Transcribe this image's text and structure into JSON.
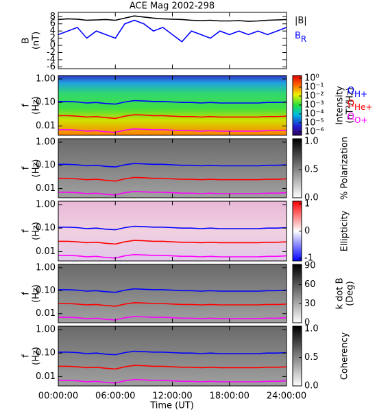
{
  "chart_data": [
    {
      "type": "line",
      "title": "ACE Mag 2002-298",
      "ylabel": [
        "B",
        "(nT)"
      ],
      "ylim": [
        -6.5,
        9.2
      ],
      "yticks": [
        -6,
        -4,
        -2,
        0,
        2,
        4,
        6,
        8
      ],
      "x": [
        0,
        1,
        2,
        3,
        4,
        5,
        6,
        7,
        8,
        9,
        10,
        11,
        12,
        13,
        14,
        15,
        16,
        17,
        18,
        19,
        20,
        21,
        22,
        23,
        24
      ],
      "legend": true,
      "series": [
        {
          "name": "|B|",
          "color": "#000000",
          "values": [
            7.2,
            7.4,
            7.3,
            7.0,
            7.1,
            7.2,
            7.0,
            7.6,
            8.2,
            7.9,
            7.6,
            7.4,
            7.3,
            7.2,
            7.0,
            6.9,
            7.0,
            6.8,
            6.8,
            6.9,
            6.7,
            6.8,
            7.0,
            7.1,
            7.2
          ]
        },
        {
          "name": "B",
          "subscript": "R",
          "color": "#0000ff",
          "values": [
            3,
            4,
            5,
            2,
            4,
            3,
            2,
            6,
            7,
            6,
            4,
            5,
            3,
            1,
            4,
            3,
            2,
            4,
            3,
            4,
            3,
            4,
            3,
            4,
            5
          ]
        }
      ]
    },
    {
      "type": "spectrogram",
      "ylabel": [
        "f",
        "(Hz)"
      ],
      "log": true,
      "ylim": [
        0.004,
        1.4
      ],
      "yticks": [
        {
          "value": 1,
          "label": "1.00"
        },
        {
          "value": 0.1,
          "label": "0.10"
        },
        {
          "value": 0.01,
          "label": "0.01"
        }
      ],
      "colormap": "rainbow",
      "colorbar": {
        "label": [
          "Intensity",
          "(nT²/Hz)"
        ],
        "log": true,
        "lim": [
          4e-07,
          2
        ],
        "ticks": [
          {
            "value": 1,
            "label": "10⁰"
          },
          {
            "value": 0.1,
            "label": "10⁻¹"
          },
          {
            "value": 0.01,
            "label": "10⁻²"
          },
          {
            "value": 0.001,
            "label": "10⁻³"
          },
          {
            "value": 0.0001,
            "label": "10⁻⁴"
          },
          {
            "value": 1e-05,
            "label": "10⁻⁵"
          },
          {
            "value": 1e-06,
            "label": "10⁻⁶"
          }
        ]
      },
      "legend": true,
      "x": [
        0,
        1,
        2,
        3,
        4,
        5,
        6,
        7,
        8,
        9,
        10,
        11,
        12,
        13,
        14,
        15,
        16,
        17,
        18,
        19,
        20,
        21,
        22,
        23,
        24
      ],
      "series": [
        {
          "name": "Ω",
          "subscript": "H+",
          "color": "#0000ff",
          "values": [
            0.11,
            0.11,
            0.105,
            0.095,
            0.1,
            0.09,
            0.085,
            0.105,
            0.12,
            0.115,
            0.11,
            0.11,
            0.105,
            0.1,
            0.1,
            0.095,
            0.1,
            0.095,
            0.095,
            0.095,
            0.095,
            0.095,
            0.1,
            0.1,
            0.105
          ]
        },
        {
          "name": "Ω",
          "subscript": "He+",
          "color": "#ff0000",
          "values": [
            0.0275,
            0.0275,
            0.026,
            0.024,
            0.025,
            0.0225,
            0.021,
            0.026,
            0.03,
            0.029,
            0.0275,
            0.0275,
            0.026,
            0.025,
            0.025,
            0.024,
            0.025,
            0.024,
            0.024,
            0.024,
            0.024,
            0.024,
            0.025,
            0.025,
            0.026
          ]
        },
        {
          "name": "Ω",
          "subscript": "O+",
          "color": "#ff00ff",
          "values": [
            0.0069,
            0.0069,
            0.0066,
            0.006,
            0.0063,
            0.0056,
            0.0053,
            0.0066,
            0.0075,
            0.0072,
            0.0069,
            0.0069,
            0.0066,
            0.0063,
            0.0063,
            0.006,
            0.0063,
            0.006,
            0.006,
            0.006,
            0.006,
            0.006,
            0.0063,
            0.0063,
            0.0066
          ]
        }
      ]
    },
    {
      "type": "spectrogram",
      "ylabel": [
        "f",
        "(Hz)"
      ],
      "log": true,
      "ylim": [
        0.004,
        1.4
      ],
      "yticks": [
        {
          "value": 1,
          "label": "1.00"
        },
        {
          "value": 0.1,
          "label": "0.10"
        },
        {
          "value": 0.01,
          "label": "0.01"
        }
      ],
      "colormap": "gray",
      "colorbar": {
        "label": [
          "% Polarization"
        ],
        "lim": [
          0,
          1.05
        ],
        "ticks": [
          {
            "value": 0,
            "label": "0.0"
          },
          {
            "value": 0.5,
            "label": "0.5"
          },
          {
            "value": 1,
            "label": "1.0"
          }
        ]
      },
      "x": [
        0,
        1,
        2,
        3,
        4,
        5,
        6,
        7,
        8,
        9,
        10,
        11,
        12,
        13,
        14,
        15,
        16,
        17,
        18,
        19,
        20,
        21,
        22,
        23,
        24
      ],
      "series": [
        {
          "color": "#0000ff",
          "values": [
            0.11,
            0.11,
            0.105,
            0.095,
            0.1,
            0.09,
            0.085,
            0.105,
            0.12,
            0.115,
            0.11,
            0.11,
            0.105,
            0.1,
            0.1,
            0.095,
            0.1,
            0.095,
            0.095,
            0.095,
            0.095,
            0.095,
            0.1,
            0.1,
            0.105
          ]
        },
        {
          "color": "#ff0000",
          "values": [
            0.0275,
            0.0275,
            0.026,
            0.024,
            0.025,
            0.0225,
            0.021,
            0.026,
            0.03,
            0.029,
            0.0275,
            0.0275,
            0.026,
            0.025,
            0.025,
            0.024,
            0.025,
            0.024,
            0.024,
            0.024,
            0.024,
            0.024,
            0.025,
            0.025,
            0.026
          ]
        },
        {
          "color": "#ff00ff",
          "values": [
            0.0069,
            0.0069,
            0.0066,
            0.006,
            0.0063,
            0.0056,
            0.0053,
            0.0066,
            0.0075,
            0.0072,
            0.0069,
            0.0069,
            0.0066,
            0.0063,
            0.0063,
            0.006,
            0.0063,
            0.006,
            0.006,
            0.006,
            0.006,
            0.006,
            0.0063,
            0.0063,
            0.0066
          ]
        }
      ]
    },
    {
      "type": "spectrogram",
      "ylabel": [
        "f",
        "(Hz)"
      ],
      "log": true,
      "ylim": [
        0.004,
        1.4
      ],
      "yticks": [
        {
          "value": 1,
          "label": "1.00"
        },
        {
          "value": 0.1,
          "label": "0.10"
        },
        {
          "value": 0.01,
          "label": "0.01"
        }
      ],
      "colormap": "bwr",
      "colorbar": {
        "label": [
          "Ellipticity"
        ],
        "lim": [
          -1.1,
          1.1
        ],
        "ticks": [
          -1,
          0,
          1
        ]
      },
      "x": [
        0,
        1,
        2,
        3,
        4,
        5,
        6,
        7,
        8,
        9,
        10,
        11,
        12,
        13,
        14,
        15,
        16,
        17,
        18,
        19,
        20,
        21,
        22,
        23,
        24
      ],
      "series": [
        {
          "color": "#0000ff",
          "values": [
            0.11,
            0.11,
            0.105,
            0.095,
            0.1,
            0.09,
            0.085,
            0.105,
            0.12,
            0.115,
            0.11,
            0.11,
            0.105,
            0.1,
            0.1,
            0.095,
            0.1,
            0.095,
            0.095,
            0.095,
            0.095,
            0.095,
            0.1,
            0.1,
            0.105
          ]
        },
        {
          "color": "#ff0000",
          "values": [
            0.0275,
            0.0275,
            0.026,
            0.024,
            0.025,
            0.0225,
            0.021,
            0.026,
            0.03,
            0.029,
            0.0275,
            0.0275,
            0.026,
            0.025,
            0.025,
            0.024,
            0.025,
            0.024,
            0.024,
            0.024,
            0.024,
            0.024,
            0.025,
            0.025,
            0.026
          ]
        },
        {
          "color": "#ff00ff",
          "values": [
            0.0069,
            0.0069,
            0.0066,
            0.006,
            0.0063,
            0.0056,
            0.0053,
            0.0066,
            0.0075,
            0.0072,
            0.0069,
            0.0069,
            0.0066,
            0.0063,
            0.0063,
            0.006,
            0.0063,
            0.006,
            0.006,
            0.006,
            0.006,
            0.006,
            0.0063,
            0.0063,
            0.0066
          ]
        }
      ]
    },
    {
      "type": "spectrogram",
      "ylabel": [
        "f",
        "(Hz)"
      ],
      "log": true,
      "ylim": [
        0.004,
        1.4
      ],
      "yticks": [
        {
          "value": 1,
          "label": "1.00"
        },
        {
          "value": 0.1,
          "label": "0.10"
        },
        {
          "value": 0.01,
          "label": "0.01"
        }
      ],
      "colormap": "gray",
      "colorbar": {
        "label": [
          "k dot B",
          "(Deg)"
        ],
        "lim": [
          0,
          92
        ],
        "ticks": [
          0,
          30,
          60,
          90
        ]
      },
      "x": [
        0,
        1,
        2,
        3,
        4,
        5,
        6,
        7,
        8,
        9,
        10,
        11,
        12,
        13,
        14,
        15,
        16,
        17,
        18,
        19,
        20,
        21,
        22,
        23,
        24
      ],
      "series": [
        {
          "color": "#0000ff",
          "values": [
            0.11,
            0.11,
            0.105,
            0.095,
            0.1,
            0.09,
            0.085,
            0.105,
            0.12,
            0.115,
            0.11,
            0.11,
            0.105,
            0.1,
            0.1,
            0.095,
            0.1,
            0.095,
            0.095,
            0.095,
            0.095,
            0.095,
            0.1,
            0.1,
            0.105
          ]
        },
        {
          "color": "#ff0000",
          "values": [
            0.0275,
            0.0275,
            0.026,
            0.024,
            0.025,
            0.0225,
            0.021,
            0.026,
            0.03,
            0.029,
            0.0275,
            0.0275,
            0.026,
            0.025,
            0.025,
            0.024,
            0.025,
            0.024,
            0.024,
            0.024,
            0.024,
            0.024,
            0.025,
            0.025,
            0.026
          ]
        },
        {
          "color": "#ff00ff",
          "values": [
            0.0069,
            0.0069,
            0.0066,
            0.006,
            0.0063,
            0.0056,
            0.0053,
            0.0066,
            0.0075,
            0.0072,
            0.0069,
            0.0069,
            0.0066,
            0.0063,
            0.0063,
            0.006,
            0.0063,
            0.006,
            0.006,
            0.006,
            0.006,
            0.006,
            0.0063,
            0.0063,
            0.0066
          ]
        }
      ]
    },
    {
      "type": "spectrogram",
      "ylabel": [
        "f",
        "(Hz)"
      ],
      "log": true,
      "ylim": [
        0.004,
        1.4
      ],
      "yticks": [
        {
          "value": 1,
          "label": "1.00"
        },
        {
          "value": 0.1,
          "label": "0.10"
        },
        {
          "value": 0.01,
          "label": "0.01"
        }
      ],
      "colormap": "gray",
      "colorbar": {
        "label": [
          "Coherency"
        ],
        "lim": [
          0,
          1.05
        ],
        "ticks": [
          {
            "value": 0,
            "label": "0.0"
          },
          {
            "value": 0.5,
            "label": "0.5"
          },
          {
            "value": 1,
            "label": "1.0"
          }
        ]
      },
      "xlabel": "Time (UT)",
      "xlim": [
        0,
        24
      ],
      "xticks": [
        {
          "value": 0,
          "label": "00:00:00"
        },
        {
          "value": 6,
          "label": "06:00:00"
        },
        {
          "value": 12,
          "label": "12:00:00"
        },
        {
          "value": 18,
          "label": "18:00:00"
        },
        {
          "value": 24,
          "label": "24:00:00"
        }
      ],
      "x": [
        0,
        1,
        2,
        3,
        4,
        5,
        6,
        7,
        8,
        9,
        10,
        11,
        12,
        13,
        14,
        15,
        16,
        17,
        18,
        19,
        20,
        21,
        22,
        23,
        24
      ],
      "series": [
        {
          "color": "#0000ff",
          "values": [
            0.11,
            0.11,
            0.105,
            0.095,
            0.1,
            0.09,
            0.085,
            0.105,
            0.12,
            0.115,
            0.11,
            0.11,
            0.105,
            0.1,
            0.1,
            0.095,
            0.1,
            0.095,
            0.095,
            0.095,
            0.095,
            0.095,
            0.1,
            0.1,
            0.105
          ]
        },
        {
          "color": "#ff0000",
          "values": [
            0.0275,
            0.0275,
            0.026,
            0.024,
            0.025,
            0.0225,
            0.021,
            0.026,
            0.03,
            0.029,
            0.0275,
            0.0275,
            0.026,
            0.025,
            0.025,
            0.024,
            0.025,
            0.024,
            0.024,
            0.024,
            0.024,
            0.024,
            0.025,
            0.025,
            0.026
          ]
        },
        {
          "color": "#ff00ff",
          "values": [
            0.0069,
            0.0069,
            0.0066,
            0.006,
            0.0063,
            0.0056,
            0.0053,
            0.0066,
            0.0075,
            0.0072,
            0.0069,
            0.0069,
            0.0066,
            0.0063,
            0.0063,
            0.006,
            0.0063,
            0.006,
            0.006,
            0.006,
            0.006,
            0.006,
            0.0063,
            0.0063,
            0.0066
          ]
        }
      ]
    }
  ]
}
